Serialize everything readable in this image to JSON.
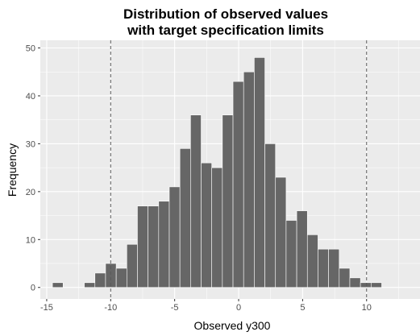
{
  "chart_data": {
    "type": "bar",
    "title_lines": [
      "Distribution of observed values",
      "with target specification limits"
    ],
    "xlabel": "Observed y300",
    "ylabel": "Frequency",
    "xlim": [
      -15.5,
      14.3
    ],
    "ylim": [
      -2.4,
      51.6
    ],
    "xticks": [
      -15,
      -10,
      -5,
      0,
      5,
      10,
      15
    ],
    "yticks": [
      0,
      10,
      20,
      30,
      40,
      50
    ],
    "grid": true,
    "bin_width": 0.83,
    "bins": [
      {
        "x0": -14.55,
        "count": 1
      },
      {
        "x0": -13.72,
        "count": 0
      },
      {
        "x0": -12.89,
        "count": 0
      },
      {
        "x0": -12.06,
        "count": 1
      },
      {
        "x0": -11.23,
        "count": 3
      },
      {
        "x0": -10.4,
        "count": 5
      },
      {
        "x0": -9.57,
        "count": 4
      },
      {
        "x0": -8.74,
        "count": 9
      },
      {
        "x0": -7.91,
        "count": 17
      },
      {
        "x0": -7.08,
        "count": 17
      },
      {
        "x0": -6.25,
        "count": 18
      },
      {
        "x0": -5.42,
        "count": 21
      },
      {
        "x0": -4.59,
        "count": 29
      },
      {
        "x0": -3.76,
        "count": 36
      },
      {
        "x0": -2.93,
        "count": 26
      },
      {
        "x0": -2.1,
        "count": 25
      },
      {
        "x0": -1.27,
        "count": 36
      },
      {
        "x0": -0.44,
        "count": 43
      },
      {
        "x0": 0.39,
        "count": 45
      },
      {
        "x0": 1.22,
        "count": 48
      },
      {
        "x0": 2.05,
        "count": 30
      },
      {
        "x0": 2.88,
        "count": 23
      },
      {
        "x0": 3.71,
        "count": 14
      },
      {
        "x0": 4.54,
        "count": 16
      },
      {
        "x0": 5.37,
        "count": 11
      },
      {
        "x0": 6.2,
        "count": 8
      },
      {
        "x0": 7.03,
        "count": 8
      },
      {
        "x0": 7.86,
        "count": 4
      },
      {
        "x0": 8.69,
        "count": 2
      },
      {
        "x0": 9.52,
        "count": 1
      },
      {
        "x0": 10.35,
        "count": 1
      }
    ],
    "spec_limits": [
      -10,
      10
    ],
    "colors": {
      "panel_bg": "#ebebeb",
      "grid_major": "#ffffff",
      "bar_fill": "#666666",
      "bar_outline": "#ffffff",
      "spec_line": "#595959"
    }
  }
}
